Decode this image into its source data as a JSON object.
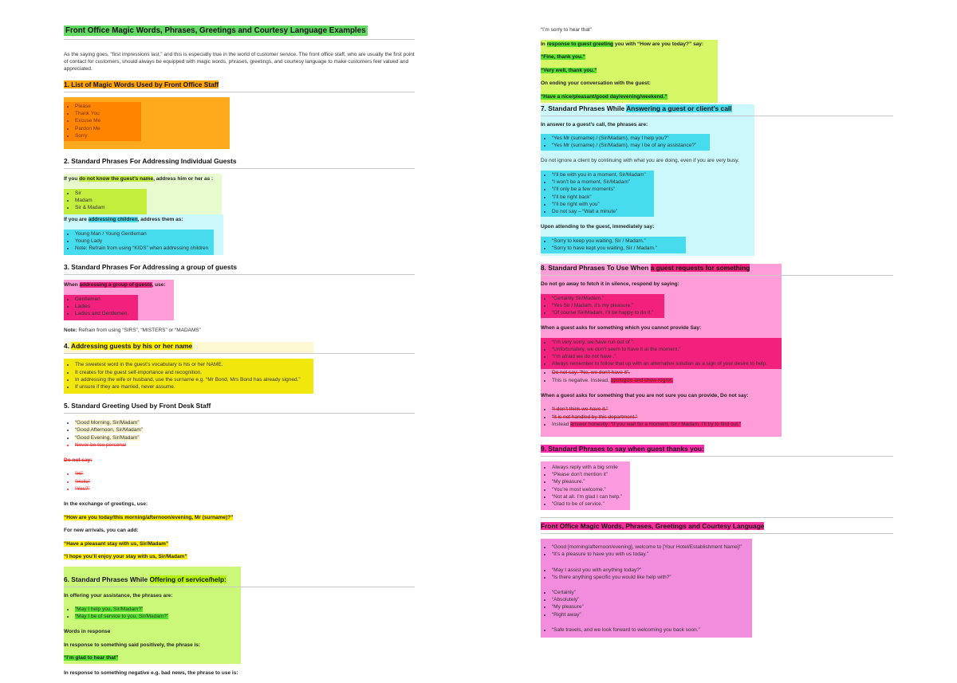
{
  "left": {
    "title": "Front Office Magic Words, Phrases, Greetings and Courtesy Language Examples",
    "intro": "As the saying goes, “first impressions last,” and this is especially true in the world of customer service. The front office staff, who are usually the first point of contact for customers, should always be equipped with magic words, phrases, greetings, and courtesy language to make customers feel valued and appreciated.",
    "s1": {
      "h": "1. List of Magic Words Used by Front Office Staff",
      "items": [
        "Please",
        "Thank You",
        "Excuse Me",
        "Pardon Me",
        "Sorry"
      ]
    },
    "s2": {
      "h": "2. Standard Phrases For Addressing Individual Guests",
      "p1a": "If you ",
      "p1hl": "do not know the guest’s name",
      "p1b": ", address him or her as :",
      "items1": [
        "Sir",
        "Madam",
        "Sir & Madam"
      ],
      "p2a": "If you are ",
      "p2hl": "addressing children",
      "p2b": ", address them as:",
      "items2": [
        "Young Man / Young Gentleman",
        "Young Lady",
        "Note: Refrain from using “KIDS” when addressing children"
      ]
    },
    "s3": {
      "h": "3. Standard Phrases For Addressing a group of guests",
      "pa": "When ",
      "phl": "addressing a group of guests",
      "pb": ", use:",
      "items": [
        "Gentlemen",
        "Ladies",
        "Ladies and Gentlemen."
      ],
      "note_label": "Note:",
      "note_rest": " Refrain from using “SIRS”, “MISTERS” or “MADAMS”"
    },
    "s4": {
      "h_num": "4. ",
      "h_hl": "Addressing guests by his or her name",
      "items": [
        "The sweetest word in the guest’s vocabulary is his or her NAME.",
        "It creates for the guest self-importance and recognition.",
        "In addressing the wife or husband, use the surname e.g. “Mr Bond, Mrs Bond has already signed.”",
        "If unsure if they are married, never assume."
      ]
    },
    "s5": {
      "h": "5. Standard Greeting Used by Front Desk Staff",
      "hl1": "“Good Morning, Sir/Madam”",
      "hl2": "“Good Afternoon, Sir/Madam”",
      "hl3": "“Good Evening, Sir/Madam”",
      "strike1": "Never be too personal",
      "donotsay": "Do not say:",
      "strike_hi": "“Hi”",
      "strike_hello": "“Hello”",
      "strike_yes": "“Yes?”",
      "p_ex": "In the exchange of greetings, use:",
      "hl_ex": "“How are you today/this morning/afternoon/evening, Mr (surname)?”",
      "p_new": "For new arrivals, you can add:",
      "hl_stay": "“Have a pleasant stay with us, Sir/Madam”",
      "hl_enjoy": "“I hope you’ll enjoy your stay with us, Sir/Madam”"
    },
    "s6": {
      "h_pre": "6. Standard Phrases While ",
      "h_hl": "Offering of service/help:",
      "p1": "In offering your assistance, the phrases are:",
      "items": [
        "“May I help you, Sir/Madam?”",
        "“May I be of service to you, Sir/Madam?”"
      ],
      "p2": "Words in response",
      "p3": "In response to something said positively, the phrase is:",
      "hl_glad": "“I’m glad to hear that”",
      "p4": "In response to something negative e.g. bad news, the phrase to use is:"
    }
  },
  "right": {
    "r0": {
      "p0": "“I’m sorry to hear that”",
      "p1a": "In ",
      "p1hl": "response to guest greeting",
      "p1b": " you with “How are you today?” say:",
      "hl_fine": "“Fine, thank you.”",
      "hl_verywell": "“Very well, thank you.”",
      "p2": "On ending your conversation with the guest:",
      "hl_nice": "“Have a nice/pleasant/good day/evening/weekend.”"
    },
    "s7": {
      "h_pre": "7. Standard Phrases While ",
      "h_hl": "Answering a guest or client's call",
      "p1": "In answer to a guest’s call, the phrases are:",
      "items1": [
        "“Yes Mr (surname) / (Sir/Madam), may I help you?”",
        "“Yes Mr (surname) / (Sir/Madam), may I be of any assistance?”"
      ],
      "p2": "Do not ignore a client by continuing with what you are doing, even if you are very busy.",
      "items2": [
        "“I’ll be with you in a moment, Sir/Madam”",
        "“I won’t be a moment, Sir/Madam”",
        "“I’ll only be a few moments”",
        "“I’ll be right back”",
        "“I’ll be right with you”",
        "Do not say –  “Wait a minute”"
      ],
      "p3": "Upon attending to the guest, immediately say:",
      "items3": [
        "“Sorry to keep you waiting, Sir / Madam.”",
        "“Sorry to have kept you waiting, Sir / Madam.”"
      ]
    },
    "s8": {
      "h_pre": "8. Standard Phrases To Use When ",
      "h_hl": "a guest requests for something",
      "p1": "Do not go away to fetch it in silence, respond by saying:",
      "items1": [
        "“Certainly Sir/Madam.”",
        "“Yes Sir / Madam, it’s my pleasure.”",
        "“Of course Sir/Madam, I’ll be happy to do it.”"
      ],
      "p2": "When a guest asks for something which you cannot provide Say:",
      "items2": [
        "“I’m very sorry, we have run out of ”.",
        "“Unfortunately, we don’t seem to have it at the moment.”",
        "“I’m afraid we do not have .”",
        "Always remember to follow that up with an alternative solution as a sign of your desire to help."
      ],
      "strike_a": "Do not say: “No, we don’t have it”.",
      "negative_pre": "This is negative. Instead, ",
      "negative_hl": "apologize and show regret.",
      "p3": "When a guest asks for something that you are not sure you can provide, Do not say:",
      "strike_b": "“I don’t think we have it.”",
      "strike_c": "“It is not handled by this department.”",
      "instead_pre": "Instead ",
      "instead_hl": "answer honestly: “If you wait for a moment, Sir / Madam, I’ll try to find out.”"
    },
    "s9": {
      "h": "9. Standard Phrases to say when guest thanks you:",
      "items": [
        "Always reply with a big smile",
        "“Please don’t mention it”",
        "“My pleasure.”",
        "“You’re most welcome.”",
        "“Not at all. I’m glad I can help.”",
        "“Glad to be of service.”"
      ]
    },
    "s10": {
      "h": "Front Office Magic Words, Phrases, Greetings and Courtesy Language",
      "g1": [
        "“Good [morning/afternoon/evening], welcome to [Your Hotel/Establishment Name]!”",
        "“It’s a pleasure to have you with us today.”"
      ],
      "g2": [
        "“May I assist you with anything today?”",
        "“Is there anything specific you would like help with?”"
      ],
      "g3": [
        "“Certainly”",
        "“Absolutely”",
        "“My pleasure”",
        "“Right away”"
      ],
      "g4": [
        "“Safe travels, and we look forward to welcoming you back soon.”"
      ]
    }
  }
}
